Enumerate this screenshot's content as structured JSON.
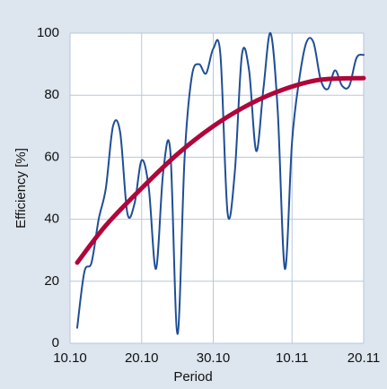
{
  "chart_data": {
    "type": "line",
    "xlabel": "Period",
    "ylabel": "Efficiency [%]",
    "xlim": [
      "10.10",
      "20.11"
    ],
    "xticks": [
      "10.10",
      "20.10",
      "30.10",
      "10.11",
      "20.11"
    ],
    "ylim": [
      0,
      100
    ],
    "yticks": [
      0,
      20,
      40,
      60,
      80,
      100
    ],
    "grid": true,
    "series": [
      {
        "color": "#1f4e96",
        "x": [
          "11.10",
          "12.10",
          "13.10",
          "14.10",
          "15.10",
          "16.10",
          "17.10",
          "18.10",
          "19.10",
          "20.10",
          "21.10",
          "22.10",
          "23.10",
          "24.10",
          "25.10",
          "26.10",
          "27.10",
          "28.10",
          "29.10",
          "30.10",
          "31.10",
          "1.11",
          "2.11",
          "3.11",
          "4.11",
          "5.11",
          "6.11",
          "7.11",
          "8.11",
          "9.11",
          "10.11",
          "11.11",
          "12.11",
          "13.11",
          "14.11",
          "15.11",
          "16.11",
          "17.11",
          "18.11",
          "19.11",
          "20.11"
        ],
        "values": [
          5,
          23,
          26,
          40,
          50,
          70,
          68,
          42,
          45,
          59,
          50,
          24,
          55,
          62,
          3,
          60,
          86,
          90,
          87,
          95,
          93,
          42,
          55,
          93,
          88,
          62,
          82,
          100,
          75,
          24,
          65,
          85,
          97,
          97,
          85,
          82,
          88,
          83,
          83,
          92,
          93
        ]
      },
      {
        "color": "#b0063a",
        "x": [
          "11.10",
          "15.10",
          "20.10",
          "25.10",
          "30.10",
          "4.11",
          "9.11",
          "14.11",
          "20.11"
        ],
        "values": [
          26,
          38,
          50,
          61,
          70,
          77,
          82,
          85,
          85.5
        ]
      }
    ]
  }
}
